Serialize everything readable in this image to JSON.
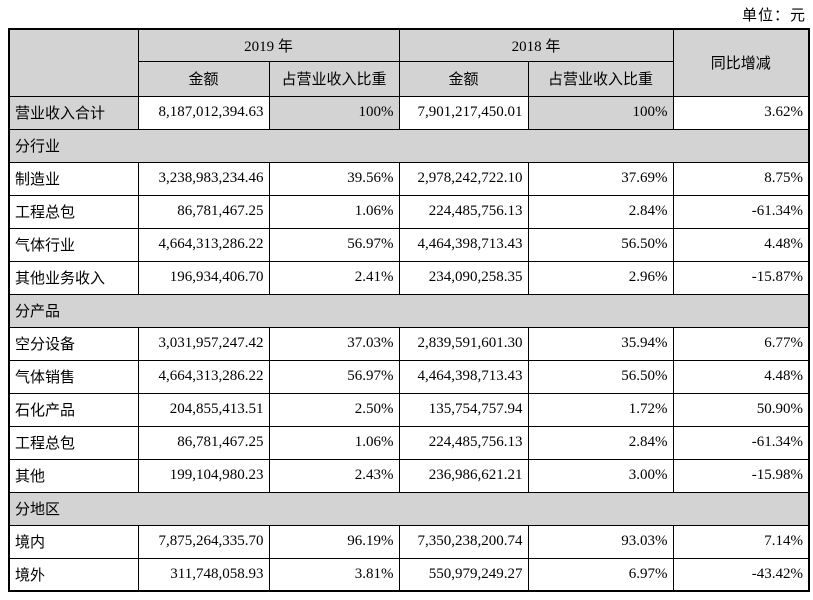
{
  "unit_label": "单位：元",
  "table": {
    "header": {
      "year_2019": "2019 年",
      "year_2018": "2018 年",
      "amount": "金额",
      "ratio": "占营业收入比重",
      "yoy_change": "同比增减"
    },
    "rows": [
      {
        "type": "total",
        "cells": [
          "营业收入合计",
          "8,187,012,394.63",
          "100%",
          "7,901,217,450.01",
          "100%",
          "3.62%"
        ]
      },
      {
        "type": "section",
        "cells": [
          "分行业"
        ]
      },
      {
        "type": "data",
        "cells": [
          "制造业",
          "3,238,983,234.46",
          "39.56%",
          "2,978,242,722.10",
          "37.69%",
          "8.75%"
        ]
      },
      {
        "type": "data",
        "cells": [
          "工程总包",
          "86,781,467.25",
          "1.06%",
          "224,485,756.13",
          "2.84%",
          "-61.34%"
        ]
      },
      {
        "type": "data",
        "cells": [
          "气体行业",
          "4,664,313,286.22",
          "56.97%",
          "4,464,398,713.43",
          "56.50%",
          "4.48%"
        ]
      },
      {
        "type": "data",
        "cells": [
          "其他业务收入",
          "196,934,406.70",
          "2.41%",
          "234,090,258.35",
          "2.96%",
          "-15.87%"
        ]
      },
      {
        "type": "section",
        "cells": [
          "分产品"
        ]
      },
      {
        "type": "data",
        "cells": [
          "空分设备",
          "3,031,957,247.42",
          "37.03%",
          "2,839,591,601.30",
          "35.94%",
          "6.77%"
        ]
      },
      {
        "type": "data",
        "cells": [
          "气体销售",
          "4,664,313,286.22",
          "56.97%",
          "4,464,398,713.43",
          "56.50%",
          "4.48%"
        ]
      },
      {
        "type": "data",
        "cells": [
          "石化产品",
          "204,855,413.51",
          "2.50%",
          "135,754,757.94",
          "1.72%",
          "50.90%"
        ]
      },
      {
        "type": "data",
        "cells": [
          "工程总包",
          "86,781,467.25",
          "1.06%",
          "224,485,756.13",
          "2.84%",
          "-61.34%"
        ]
      },
      {
        "type": "data",
        "cells": [
          "其他",
          "199,104,980.23",
          "2.43%",
          "236,986,621.21",
          "3.00%",
          "-15.98%"
        ]
      },
      {
        "type": "section",
        "cells": [
          "分地区"
        ]
      },
      {
        "type": "data",
        "cells": [
          "境内",
          "7,875,264,335.70",
          "96.19%",
          "7,350,238,200.74",
          "93.03%",
          "7.14%"
        ]
      },
      {
        "type": "data",
        "cells": [
          "境外",
          "311,748,058.93",
          "3.81%",
          "550,979,249.27",
          "6.97%",
          "-43.42%"
        ]
      }
    ]
  },
  "colors": {
    "header_bg": "#d3d3d3",
    "border": "#000000",
    "text": "#000000",
    "page_bg": "#ffffff"
  }
}
